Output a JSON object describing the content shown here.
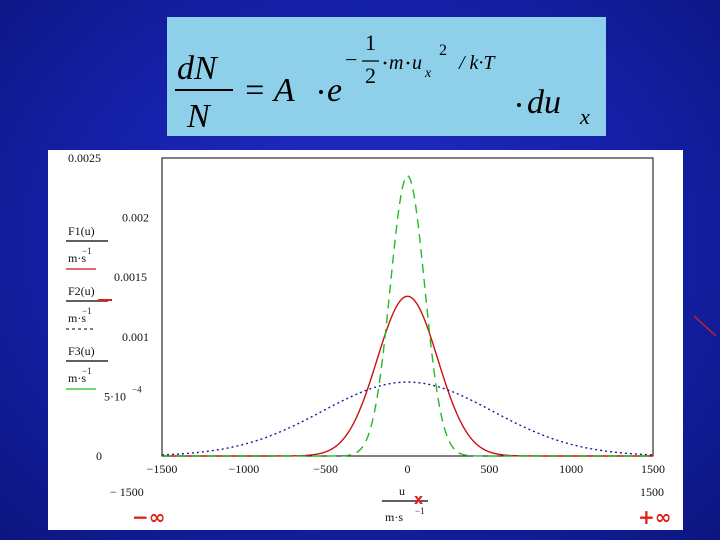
{
  "formula": {
    "lhs_num": "dN",
    "lhs_den": "N",
    "eq": "= A",
    "e": "e",
    "exp_minus": "−",
    "exp_one": "1",
    "exp_two": "2",
    "exp_m": "m",
    "exp_u": "u",
    "exp_x": "x",
    "exp_sq": "2",
    "exp_rest": "/ k·T",
    "du": "du",
    "du_sub": "x"
  },
  "chart_data": {
    "type": "line",
    "x_range": [
      -1500,
      1500
    ],
    "ylim": [
      0,
      0.0025
    ],
    "x_ticks": [
      "−1500",
      "−1000",
      "−500",
      "0",
      "500",
      "1000",
      "1500"
    ],
    "x_tick_values": [
      -1500,
      -1000,
      -500,
      0,
      500,
      1000,
      1500
    ],
    "y_ticks": [
      "0.0025",
      "0.002",
      "0.0015",
      "0.001",
      "5·10",
      "0"
    ],
    "y_tick_exp": "−4",
    "y_tick_values": [
      0.0025,
      0.002,
      0.0015,
      0.001,
      0.0005,
      0
    ],
    "x_range_labels": [
      "− 1500",
      "1500"
    ],
    "xlabel": {
      "num": "u",
      "den": "m·s",
      "den_exp": "−1"
    },
    "ylabels": [
      {
        "num": "F1(u)",
        "den": "m·s",
        "den_exp": "−1"
      },
      {
        "num": "F2(u)",
        "den": "m·s",
        "den_exp": "−1"
      },
      {
        "num": "F3(u)",
        "den": "m·s",
        "den_exp": "−1"
      }
    ],
    "series": [
      {
        "peak": 0.00134,
        "sigma": 185,
        "color": "#cc1111",
        "dash": "solid"
      },
      {
        "peak": 0.00235,
        "sigma": 105,
        "color": "#22bb22",
        "dash": "long-dash"
      },
      {
        "peak": 0.00062,
        "sigma": 520,
        "color": "#1a1aa0",
        "dash": "dotted"
      }
    ],
    "grid": false
  },
  "annotations": {
    "minus_inf": "−∞",
    "plus_inf": "+∞",
    "x_mark": "x",
    "decor_color": "#e0201a"
  }
}
